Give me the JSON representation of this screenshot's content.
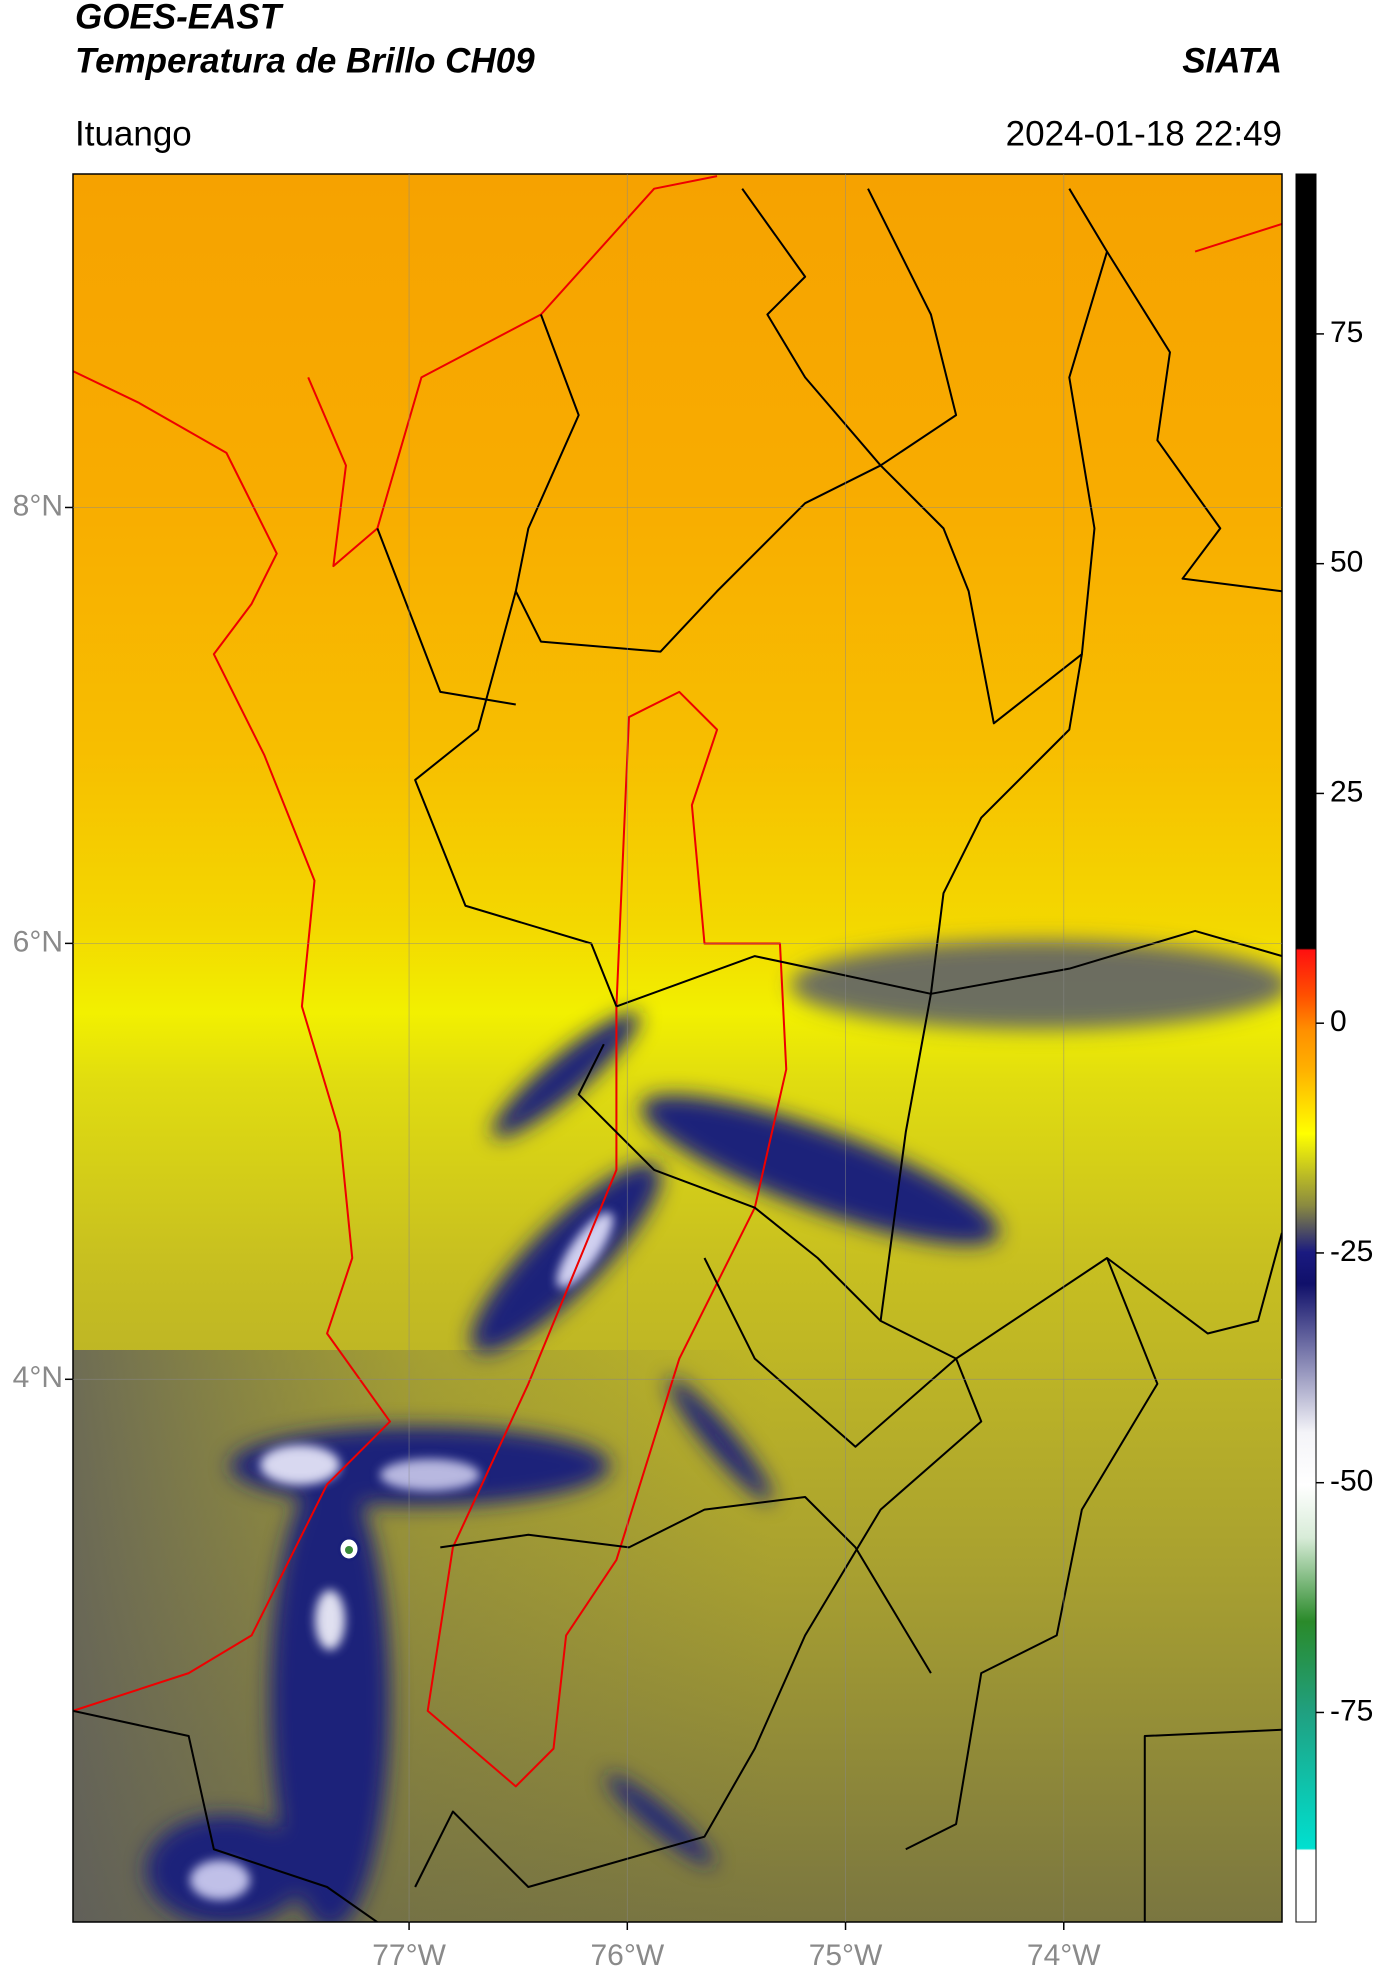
{
  "header": {
    "title": "GOES-EAST",
    "subtitle": "Temperatura de Brillo CH09",
    "source": "SIATA",
    "location": "Ituango",
    "timestamp": "2024-01-18 22:49"
  },
  "map": {
    "xlim": [
      -78.54,
      -73.0
    ],
    "ylim": [
      1.51,
      9.53
    ],
    "xticks": [
      {
        "value": -77,
        "label": "77°W"
      },
      {
        "value": -76,
        "label": "76°W"
      },
      {
        "value": -75,
        "label": "75°W"
      },
      {
        "value": -74,
        "label": "74°W"
      }
    ],
    "yticks": [
      {
        "value": 4,
        "label": "4°N"
      },
      {
        "value": 6,
        "label": "6°N"
      },
      {
        "value": 8,
        "label": "8°N"
      }
    ],
    "grid": true
  },
  "colorbar": {
    "lim": [
      -97.8,
      92.4
    ],
    "ticks": [
      -75,
      -50,
      -25,
      0,
      25,
      50,
      75
    ]
  }
}
